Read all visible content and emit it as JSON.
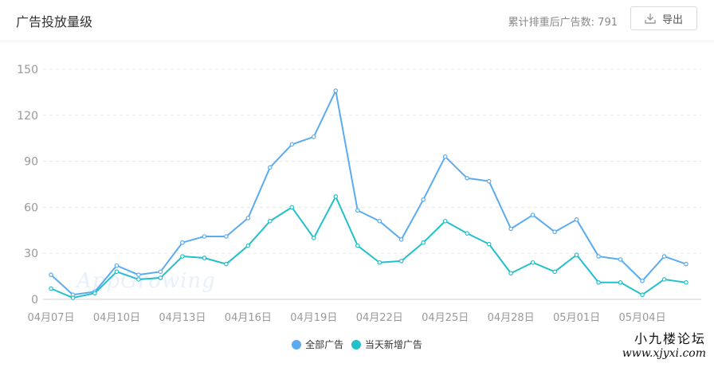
{
  "header": {
    "title": "广告投放量级",
    "count_label": "累计排重后广告数: 791",
    "export_label": "导出"
  },
  "watermark": {
    "faint": "AppGrowing",
    "forum_name": "小九楼论坛",
    "forum_url": "www.xjyxi.com"
  },
  "colors": {
    "series_all": "#5aabf0",
    "series_new": "#22c0c9",
    "grid": "#e8e8e8",
    "axis_text": "#999999"
  },
  "chart_data": {
    "type": "line",
    "x": [
      "04月07日",
      "04月08日",
      "04月09日",
      "04月10日",
      "04月11日",
      "04月12日",
      "04月13日",
      "04月14日",
      "04月15日",
      "04月16日",
      "04月17日",
      "04月18日",
      "04月19日",
      "04月20日",
      "04月21日",
      "04月22日",
      "04月23日",
      "04月24日",
      "04月25日",
      "04月26日",
      "04月27日",
      "04月28日",
      "04月29日",
      "04月30日",
      "05月01日",
      "05月02日",
      "05月03日",
      "05月04日",
      "05月05日",
      "05月06日"
    ],
    "x_tick_labels": [
      "04月07日",
      "04月10日",
      "04月13日",
      "04月16日",
      "04月19日",
      "04月22日",
      "04月25日",
      "04月28日",
      "05月01日",
      "05月04日"
    ],
    "series": [
      {
        "name": "全部广告",
        "values": [
          16,
          3,
          5,
          22,
          16,
          18,
          37,
          41,
          41,
          53,
          86,
          101,
          106,
          136,
          58,
          51,
          39,
          65,
          93,
          79,
          77,
          46,
          55,
          44,
          52,
          28,
          26,
          12,
          28,
          23
        ]
      },
      {
        "name": "当天新增广告",
        "values": [
          7,
          1,
          4,
          18,
          13,
          14,
          28,
          27,
          23,
          35,
          51,
          60,
          40,
          67,
          35,
          24,
          25,
          37,
          51,
          43,
          36,
          17,
          24,
          18,
          29,
          11,
          11,
          3,
          13,
          11
        ]
      }
    ],
    "y_ticks": [
      0,
      30,
      60,
      90,
      120,
      150
    ],
    "ylim": [
      0,
      150
    ],
    "grid": true,
    "legend_position": "bottom-center"
  }
}
